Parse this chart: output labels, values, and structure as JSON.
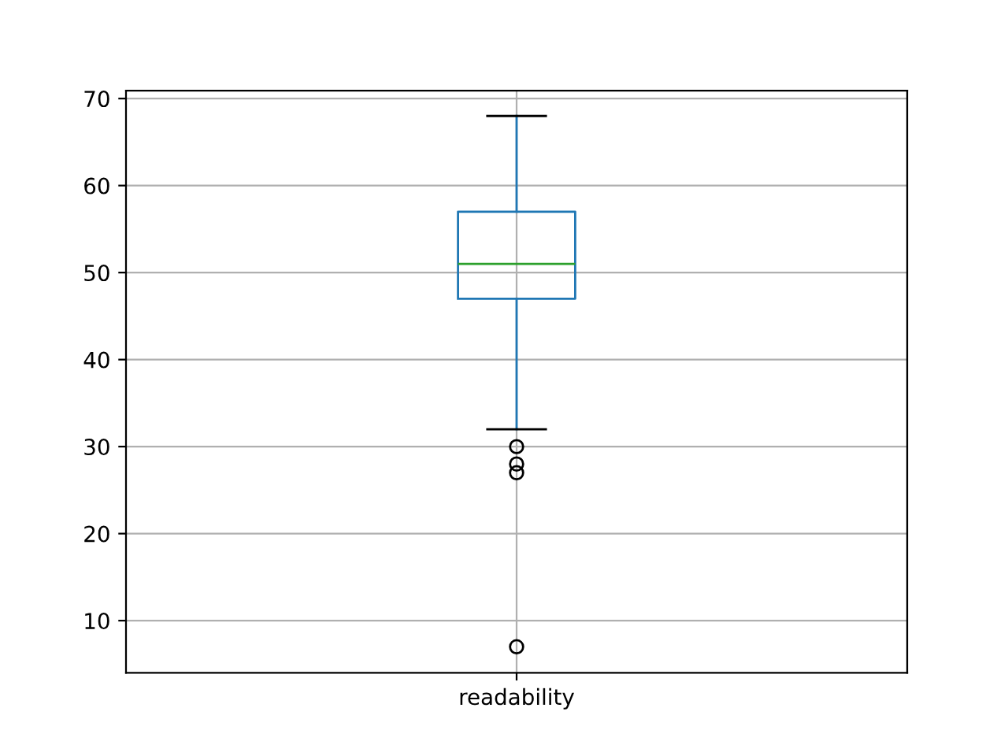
{
  "chart_data": {
    "type": "box",
    "categories": [
      "readability"
    ],
    "boxes": [
      {
        "low": 32,
        "q1": 47,
        "median": 51,
        "q3": 57,
        "high": 68,
        "outliers": [
          30,
          28,
          27,
          7
        ]
      }
    ],
    "color": "#1f77b4",
    "ylim": [
      4.0,
      70.9
    ],
    "yticks": [
      10,
      20,
      30,
      40,
      50,
      60,
      70
    ],
    "grid": true
  }
}
